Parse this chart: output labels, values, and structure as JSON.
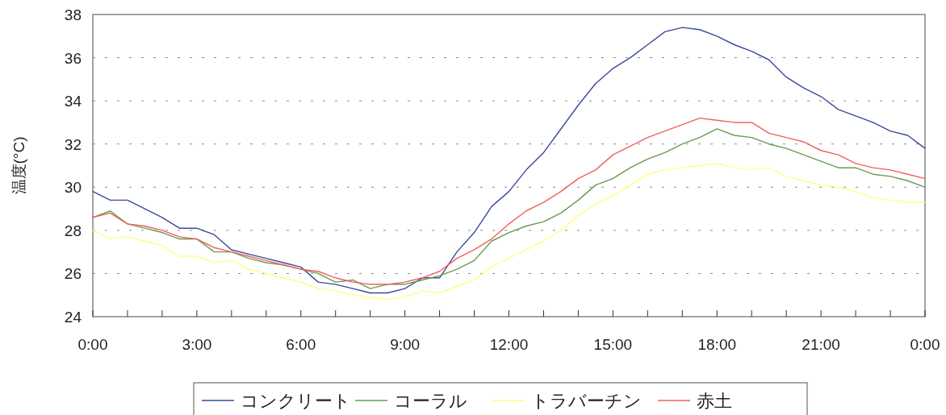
{
  "chart_data": {
    "type": "line",
    "ylabel": "温度(°C)",
    "x": [
      0,
      0.5,
      1,
      1.5,
      2,
      2.5,
      3,
      3.5,
      4,
      4.5,
      5,
      5.5,
      6,
      6.5,
      7,
      7.5,
      8,
      8.5,
      9,
      9.5,
      10,
      10.5,
      11,
      11.5,
      12,
      12.5,
      13,
      13.5,
      14,
      14.5,
      15,
      15.5,
      16,
      16.5,
      17,
      17.5,
      18,
      18.5,
      19,
      19.5,
      20,
      20.5,
      21,
      21.5,
      22,
      22.5,
      23,
      23.5,
      24
    ],
    "series": [
      {
        "name": "コンクリート",
        "color": "#3a4a9a",
        "values": [
          29.8,
          29.4,
          29.4,
          29.0,
          28.6,
          28.1,
          28.1,
          27.8,
          27.1,
          26.9,
          26.7,
          26.5,
          26.3,
          25.6,
          25.5,
          25.3,
          25.1,
          25.1,
          25.3,
          25.8,
          25.8,
          27.0,
          27.9,
          29.1,
          29.8,
          30.8,
          31.6,
          32.7,
          33.8,
          34.8,
          35.5,
          36.0,
          36.6,
          37.2,
          37.4,
          37.3,
          37.0,
          36.6,
          36.3,
          35.9,
          35.1,
          34.6,
          34.2,
          33.6,
          33.3,
          33.0,
          32.6,
          32.4,
          31.8
        ]
      },
      {
        "name": "コーラル",
        "color": "#6a9a50",
        "values": [
          28.6,
          28.9,
          28.3,
          28.1,
          27.9,
          27.6,
          27.6,
          27.0,
          27.0,
          26.7,
          26.5,
          26.4,
          26.2,
          26.0,
          25.6,
          25.7,
          25.3,
          25.5,
          25.5,
          25.7,
          25.9,
          26.2,
          26.6,
          27.5,
          27.9,
          28.2,
          28.4,
          28.8,
          29.4,
          30.1,
          30.4,
          30.9,
          31.3,
          31.6,
          32.0,
          32.3,
          32.7,
          32.4,
          32.3,
          32.0,
          31.8,
          31.5,
          31.2,
          30.9,
          30.9,
          30.6,
          30.5,
          30.3,
          30.0
        ]
      },
      {
        "name": "トラバーチン",
        "color": "#ffff80",
        "values": [
          28.0,
          27.6,
          27.7,
          27.5,
          27.3,
          26.8,
          26.8,
          26.5,
          26.6,
          26.2,
          26.0,
          25.8,
          25.6,
          25.3,
          25.2,
          25.0,
          24.9,
          24.8,
          24.9,
          25.2,
          25.1,
          25.4,
          25.7,
          26.3,
          26.7,
          27.1,
          27.5,
          28.0,
          28.7,
          29.2,
          29.6,
          30.1,
          30.6,
          30.8,
          30.9,
          31.0,
          31.1,
          30.9,
          30.8,
          30.9,
          30.5,
          30.3,
          30.1,
          30.0,
          29.8,
          29.5,
          29.4,
          29.3,
          29.3
        ]
      },
      {
        "name": "赤土",
        "color": "#f06060",
        "values": [
          28.6,
          28.8,
          28.3,
          28.2,
          28.0,
          27.7,
          27.6,
          27.2,
          27.0,
          26.8,
          26.6,
          26.4,
          26.2,
          26.1,
          25.8,
          25.6,
          25.5,
          25.5,
          25.6,
          25.8,
          26.1,
          26.7,
          27.1,
          27.6,
          28.3,
          28.9,
          29.3,
          29.8,
          30.4,
          30.8,
          31.5,
          31.9,
          32.3,
          32.6,
          32.9,
          33.2,
          33.1,
          33.0,
          33.0,
          32.5,
          32.3,
          32.1,
          31.7,
          31.5,
          31.1,
          30.9,
          30.8,
          30.6,
          30.4
        ]
      }
    ],
    "xlim": [
      0,
      24
    ],
    "xticks": [
      {
        "value": 0,
        "label": "0:00"
      },
      {
        "value": 1,
        "label": null
      },
      {
        "value": 2,
        "label": null
      },
      {
        "value": 3,
        "label": "3:00"
      },
      {
        "value": 4,
        "label": null
      },
      {
        "value": 5,
        "label": null
      },
      {
        "value": 6,
        "label": "6:00"
      },
      {
        "value": 7,
        "label": null
      },
      {
        "value": 8,
        "label": null
      },
      {
        "value": 9,
        "label": "9:00"
      },
      {
        "value": 10,
        "label": null
      },
      {
        "value": 11,
        "label": null
      },
      {
        "value": 12,
        "label": "12:00"
      },
      {
        "value": 13,
        "label": null
      },
      {
        "value": 14,
        "label": null
      },
      {
        "value": 15,
        "label": "15:00"
      },
      {
        "value": 16,
        "label": null
      },
      {
        "value": 17,
        "label": null
      },
      {
        "value": 18,
        "label": "18:00"
      },
      {
        "value": 19,
        "label": null
      },
      {
        "value": 20,
        "label": null
      },
      {
        "value": 21,
        "label": "21:00"
      },
      {
        "value": 22,
        "label": null
      },
      {
        "value": 23,
        "label": null
      },
      {
        "value": 24,
        "label": "0:00"
      }
    ],
    "ylim": [
      24,
      38
    ],
    "yticks": [
      24,
      26,
      28,
      30,
      32,
      34,
      36,
      38
    ],
    "grid": "y",
    "legend": "bottom",
    "marker": "none",
    "line_style": "solid"
  }
}
